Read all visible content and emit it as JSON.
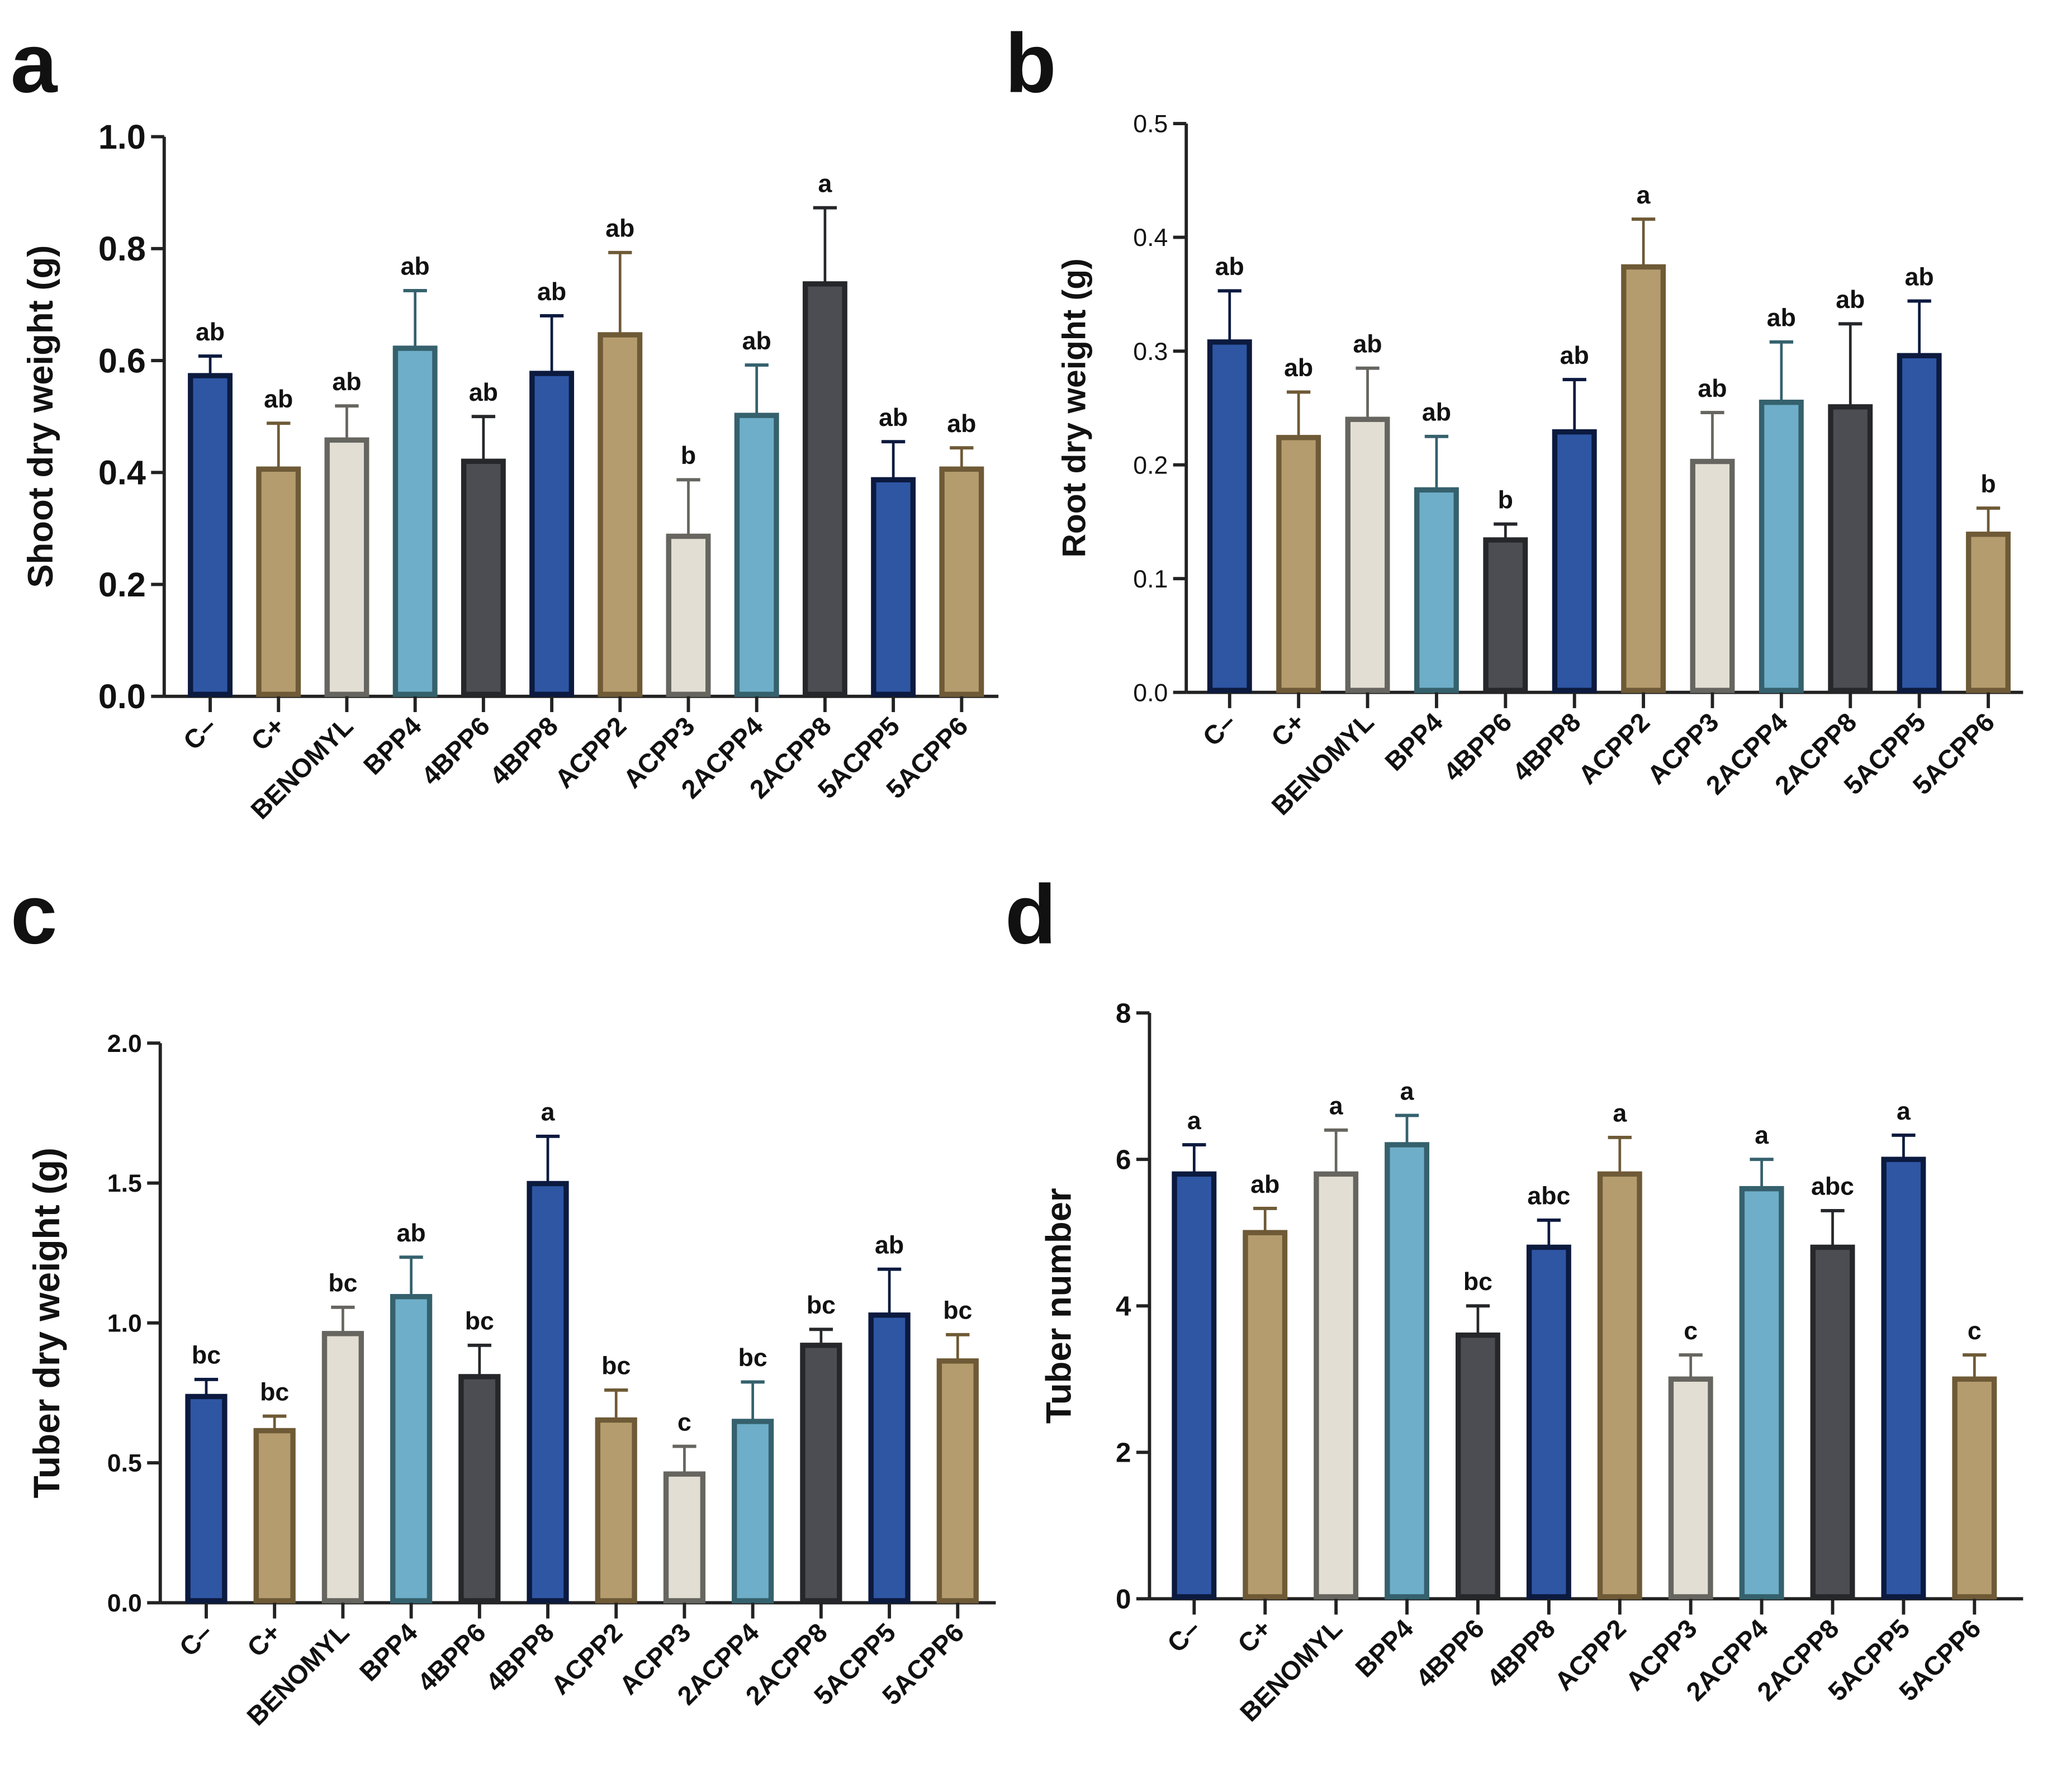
{
  "colors": {
    "dark_blue": {
      "fill": "#2e56a3",
      "stroke": "#0c1a3f"
    },
    "tan": {
      "fill": "#b59c6e",
      "stroke": "#6e5a36"
    },
    "cream": {
      "fill": "#e2ded3",
      "stroke": "#66655f"
    },
    "light_blue": {
      "fill": "#6eaec8",
      "stroke": "#35616d"
    },
    "dark_gray": {
      "fill": "#4b4d52",
      "stroke": "#26272a"
    }
  },
  "chart_data": [
    {
      "panel": "a",
      "type": "bar",
      "ylabel": "Shoot dry weight (g)",
      "ylim": [
        0,
        1.0
      ],
      "yticks": [
        "0.0",
        "0.2",
        "0.4",
        "0.6",
        "0.8",
        "1.0"
      ],
      "ytick_values": [
        0,
        0.2,
        0.4,
        0.6,
        0.8,
        1.0
      ],
      "categories": [
        "C–",
        "C+",
        "BENOMYL",
        "BPP4",
        "4BPP6",
        "4BPP8",
        "ACPP2",
        "ACPP3",
        "2ACPP4",
        "2ACPP8",
        "5ACPP5",
        "5ACPP6"
      ],
      "bar_colors": [
        "dark_blue",
        "tan",
        "cream",
        "light_blue",
        "dark_gray",
        "dark_blue",
        "tan",
        "cream",
        "light_blue",
        "dark_gray",
        "dark_blue",
        "tan"
      ],
      "values": [
        0.573,
        0.406,
        0.458,
        0.622,
        0.42,
        0.577,
        0.646,
        0.286,
        0.502,
        0.737,
        0.387,
        0.406
      ],
      "error_upper": [
        0.608,
        0.488,
        0.519,
        0.725,
        0.5,
        0.68,
        0.793,
        0.387,
        0.592,
        0.873,
        0.455,
        0.444
      ],
      "letters": [
        "ab",
        "ab",
        "ab",
        "ab",
        "ab",
        "ab",
        "ab",
        "b",
        "ab",
        "a",
        "ab",
        "ab"
      ]
    },
    {
      "panel": "b",
      "type": "bar",
      "ylabel": "Root dry weight (g)",
      "ylim": [
        0,
        0.5
      ],
      "yticks": [
        "0.0",
        "0.1",
        "0.2",
        "0.3",
        "0.4",
        "0.5"
      ],
      "ytick_values": [
        0,
        0.1,
        0.2,
        0.3,
        0.4,
        0.5
      ],
      "categories": [
        "C–",
        "C+",
        "BENOMYL",
        "BPP4",
        "4BPP6",
        "4BPP8",
        "ACPP2",
        "ACPP3",
        "2ACPP4",
        "2ACPP8",
        "5ACPP5",
        "5ACPP6"
      ],
      "bar_colors": [
        "dark_blue",
        "tan",
        "cream",
        "light_blue",
        "dark_gray",
        "dark_blue",
        "tan",
        "cream",
        "light_blue",
        "dark_gray",
        "dark_blue",
        "tan"
      ],
      "values": [
        0.308,
        0.224,
        0.24,
        0.178,
        0.134,
        0.229,
        0.374,
        0.203,
        0.255,
        0.251,
        0.296,
        0.139
      ],
      "error_upper": [
        0.353,
        0.264,
        0.285,
        0.225,
        0.148,
        0.275,
        0.416,
        0.246,
        0.308,
        0.324,
        0.344,
        0.162
      ],
      "letters": [
        "ab",
        "ab",
        "ab",
        "ab",
        "b",
        "ab",
        "a",
        "ab",
        "ab",
        "ab",
        "ab",
        "b"
      ]
    },
    {
      "panel": "c",
      "type": "bar",
      "ylabel": "Tuber dry weight (g)",
      "ylim": [
        0,
        2.0
      ],
      "yticks": [
        "0.0",
        "0.5",
        "1.0",
        "1.5",
        "2.0"
      ],
      "ytick_values": [
        0,
        0.5,
        1.0,
        1.5,
        2.0
      ],
      "categories": [
        "C–",
        "C+",
        "BENOMYL",
        "BPP4",
        "4BPP6",
        "4BPP8",
        "ACPP2",
        "ACPP3",
        "2ACPP4",
        "2ACPP8",
        "5ACPP5",
        "5ACPP6"
      ],
      "bar_colors": [
        "dark_blue",
        "tan",
        "cream",
        "light_blue",
        "dark_gray",
        "dark_blue",
        "tan",
        "cream",
        "light_blue",
        "dark_gray",
        "dark_blue",
        "tan"
      ],
      "values": [
        0.737,
        0.615,
        0.962,
        1.094,
        0.808,
        1.498,
        0.653,
        0.46,
        0.648,
        0.92,
        1.028,
        0.864
      ],
      "error_upper": [
        0.798,
        0.667,
        1.056,
        1.235,
        0.92,
        1.667,
        0.76,
        0.559,
        0.789,
        0.977,
        1.192,
        0.958
      ],
      "letters": [
        "bc",
        "bc",
        "bc",
        "ab",
        "bc",
        "a",
        "bc",
        "c",
        "bc",
        "bc",
        "ab",
        "bc"
      ]
    },
    {
      "panel": "d",
      "type": "bar",
      "ylabel": "Tuber number",
      "ylim": [
        0,
        8
      ],
      "yticks": [
        "0",
        "2",
        "4",
        "6",
        "8"
      ],
      "ytick_values": [
        0,
        2,
        4,
        6,
        8
      ],
      "categories": [
        "C–",
        "C+",
        "BENOMYL",
        "BPP4",
        "4BPP6",
        "4BPP8",
        "ACPP2",
        "ACPP3",
        "2ACPP4",
        "2ACPP8",
        "5ACPP5",
        "5ACPP6"
      ],
      "bar_colors": [
        "dark_blue",
        "tan",
        "cream",
        "light_blue",
        "dark_gray",
        "dark_blue",
        "tan",
        "cream",
        "light_blue",
        "dark_gray",
        "dark_blue",
        "tan"
      ],
      "values": [
        5.8,
        5.0,
        5.8,
        6.2,
        3.6,
        4.8,
        5.8,
        3.0,
        5.6,
        4.8,
        6.0,
        3.0
      ],
      "error_upper": [
        6.2,
        5.33,
        6.4,
        6.6,
        4.0,
        5.17,
        6.3,
        3.33,
        6.0,
        5.3,
        6.33,
        3.33
      ],
      "letters": [
        "a",
        "ab",
        "a",
        "a",
        "bc",
        "abc",
        "a",
        "c",
        "a",
        "abc",
        "a",
        "c"
      ]
    }
  ]
}
